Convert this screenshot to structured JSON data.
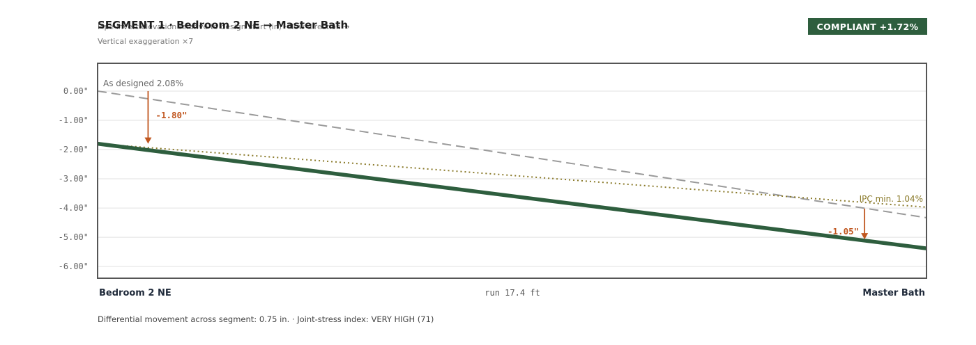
{
  "header": {
    "title": "SEGMENT 1 · Bedroom 2 NE → Master Bath",
    "subtitle": "Pipe invert elevation relative to design start (in) · flow direction →",
    "exaggeration": "Vertical exaggeration ×7",
    "badge": "COMPLIANT +1.72%"
  },
  "chart_data": {
    "type": "line",
    "ylim": [
      -6.4,
      0.95
    ],
    "yticks": [
      0,
      -1,
      -2,
      -3,
      -4,
      -5,
      -6
    ],
    "ytick_labels": [
      "0.00\"",
      "-1.00\"",
      "-2.00\"",
      "-3.00\"",
      "-4.00\"",
      "-5.00\"",
      "-6.00\""
    ],
    "xlim": [
      0,
      17.4
    ],
    "series": [
      {
        "key": "designed",
        "name": "As designed 2.08%",
        "style": "dashed",
        "color": "#9a9a9a",
        "x": [
          0,
          17.4
        ],
        "y": [
          0,
          -4.33
        ]
      },
      {
        "key": "ipc_min",
        "name": "IPC min. 1.04%",
        "style": "dotted",
        "color": "#8a7a2a",
        "x": [
          0,
          17.4
        ],
        "y": [
          -1.8,
          -3.97
        ]
      },
      {
        "key": "actual",
        "name": "",
        "style": "solid",
        "color": "#2e5e3e",
        "x": [
          0,
          17.4
        ],
        "y": [
          -1.8,
          -5.38
        ]
      }
    ],
    "annotations": [
      {
        "label": "-1.80\"",
        "x": 1.06,
        "y_from": 0.0,
        "y_to": -1.8,
        "color": "#c0561f"
      },
      {
        "label": "-1.05\"",
        "x": 16.1,
        "y_from": -4.02,
        "y_to": -5.07,
        "color": "#c0561f"
      }
    ],
    "x_start_label": "Bedroom 2 NE",
    "x_end_label": "Master Bath",
    "x_run_label": "run 17.4 ft"
  },
  "footer": {
    "text": "Differential movement across segment: 0.75 in.  ·  Joint-stress index: VERY HIGH (71)"
  },
  "colors": {
    "badge_bg": "#2e5e3e",
    "actual": "#2e5e3e",
    "designed": "#9a9a9a",
    "ipc": "#8a7a2a",
    "annotation": "#c0561f"
  }
}
